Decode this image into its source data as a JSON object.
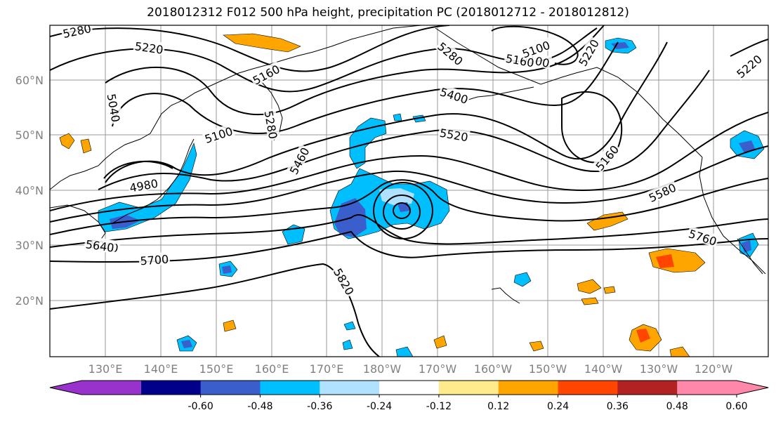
{
  "title": "2018012312 F012 500 hPa height, precipitation PC (2018012712 - 2018012812)",
  "map": {
    "lon_labels": [
      "130°E",
      "140°E",
      "150°E",
      "160°E",
      "170°E",
      "180°W",
      "170°W",
      "160°W",
      "150°W",
      "140°W",
      "130°W",
      "120°W"
    ],
    "lat_labels": [
      "60°N",
      "50°N",
      "40°N",
      "30°N",
      "20°N"
    ],
    "contour_labels": [
      "5280",
      "5220",
      "5160",
      "5100",
      "5040",
      "4980",
      "5040",
      "5100",
      "5280",
      "5460",
      "5400",
      "5520",
      "5640",
      "5700",
      "5820",
      "5280",
      "5160",
      "5100",
      "5220",
      "5220",
      "5160",
      "5580",
      "5760"
    ],
    "colors": {
      "coast": "#000000",
      "grid": "#999999",
      "contour": "#000000"
    }
  },
  "colorbar": {
    "colors": [
      "#9932cc",
      "#00008b",
      "#3a5fcd",
      "#00bfff",
      "#b0e2ff",
      "#ffffff",
      "#ffeb8b",
      "#ffa500",
      "#ff4500",
      "#b22222",
      "#ff88aa"
    ],
    "tick_labels": [
      "-0.60",
      "-0.48",
      "-0.36",
      "-0.24",
      "-0.12",
      "0.12",
      "0.24",
      "0.36",
      "0.48",
      "0.60"
    ]
  }
}
